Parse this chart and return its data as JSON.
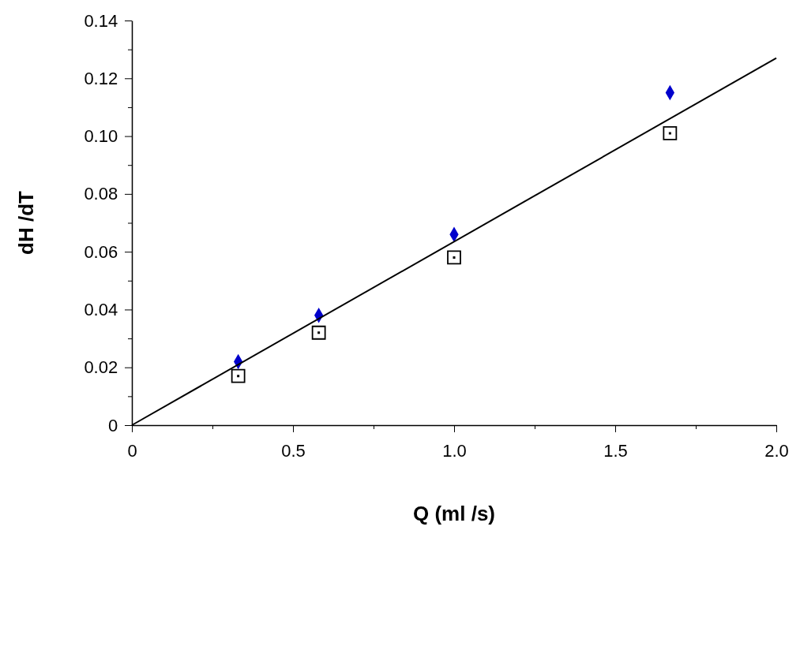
{
  "chart_data": {
    "type": "scatter",
    "xlabel": "Q (ml /s)",
    "ylabel": "dH /dT",
    "xlim": [
      0,
      2.0
    ],
    "ylim": [
      0,
      0.14
    ],
    "xticks": [
      0,
      {
        "value": 0.25,
        "label": null
      },
      0.5,
      {
        "value": 0.75,
        "label": null
      },
      {
        "value": 1.0,
        "label": "1.0"
      },
      {
        "value": 1.25,
        "label": null
      },
      1.5,
      {
        "value": 1.75,
        "label": null
      },
      {
        "value": 2.0,
        "label": "2.0"
      }
    ],
    "yticks": [
      0,
      {
        "value": 0.01,
        "label": null
      },
      0.02,
      {
        "value": 0.03,
        "label": null
      },
      0.04,
      {
        "value": 0.05,
        "label": null
      },
      0.06,
      {
        "value": 0.07,
        "label": null
      },
      0.08,
      {
        "value": 0.09,
        "label": null
      },
      {
        "value": 0.1,
        "label": "0.10"
      },
      {
        "value": 0.11,
        "label": null
      },
      0.12,
      {
        "value": 0.13,
        "label": null
      },
      0.14
    ],
    "grid": false,
    "series": [
      {
        "marker": "square",
        "color": "#000000",
        "x": [
          0.33,
          0.58,
          1.0,
          1.67
        ],
        "values": [
          0.017,
          0.032,
          0.058,
          0.101
        ]
      },
      {
        "marker": "diamond",
        "color": "#0000cc",
        "x": [
          0.33,
          0.58,
          1.0,
          1.67
        ],
        "values": [
          0.022,
          0.038,
          0.066,
          0.115
        ]
      },
      {
        "type": "line",
        "marker": "none",
        "color": "#000000",
        "x": [
          0,
          2.0
        ],
        "values": [
          0,
          0.127
        ]
      }
    ]
  }
}
